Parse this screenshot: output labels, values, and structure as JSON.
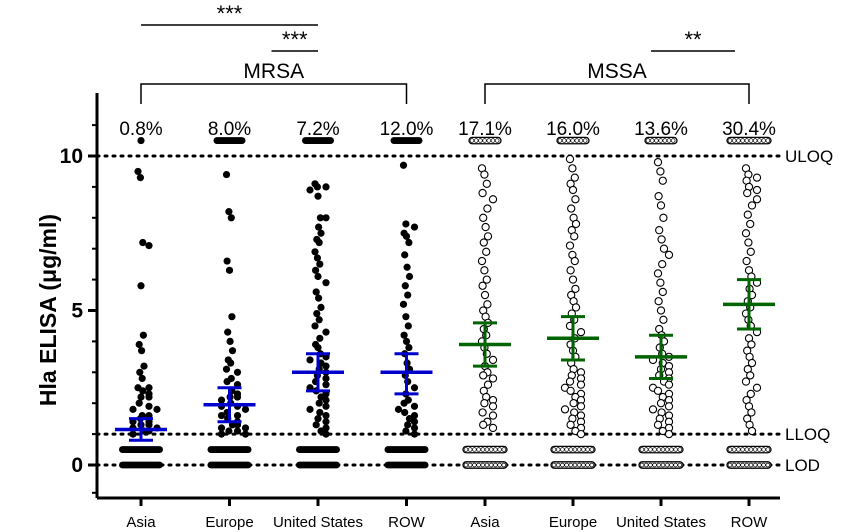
{
  "chart_data": {
    "type": "scatter",
    "title": "",
    "ylabel": "Hla ELISA (μg/ml)",
    "ylim": [
      -0.9,
      12.2
    ],
    "yticks": [
      0,
      5,
      10
    ],
    "categories": [
      "Asia",
      "Europe",
      "United States",
      "ROW",
      "Asia",
      "Europe",
      "United States",
      "ROW"
    ],
    "groups": [
      {
        "label": "MRSA",
        "from": 0,
        "to": 3,
        "marker": "filled",
        "color": "#0000cc"
      },
      {
        "label": "MSSA",
        "from": 4,
        "to": 7,
        "marker": "open",
        "color": "#006400"
      }
    ],
    "percent_above_uloq": [
      "0.8%",
      "8.0%",
      "7.2%",
      "12.0%",
      "17.1%",
      "16.0%",
      "13.6%",
      "30.4%"
    ],
    "reference_lines": [
      {
        "label": "ULOQ",
        "y": 10.0
      },
      {
        "label": "LLOQ",
        "y": 1.0
      },
      {
        "label": "LOD",
        "y": 0.0
      }
    ],
    "censored_y": {
      "above_uloq": 10.5,
      "below_lod": 0.0,
      "below_lloq": 0.5
    },
    "summary": [
      {
        "mean": 1.15,
        "lower": 0.8,
        "upper": 1.5
      },
      {
        "mean": 1.95,
        "lower": 1.4,
        "upper": 2.5
      },
      {
        "mean": 3.0,
        "lower": 2.4,
        "upper": 3.6
      },
      {
        "mean": 3.0,
        "lower": 2.3,
        "upper": 3.6
      },
      {
        "mean": 3.9,
        "lower": 3.2,
        "upper": 4.6
      },
      {
        "mean": 4.1,
        "lower": 3.4,
        "upper": 4.8
      },
      {
        "mean": 3.5,
        "lower": 2.8,
        "upper": 4.2
      },
      {
        "mean": 5.2,
        "lower": 4.4,
        "upper": 6.0
      }
    ],
    "points": [
      [
        9.5,
        9.3,
        7.2,
        7.1,
        5.8,
        4.2,
        3.9,
        3.7,
        3.2,
        3.0,
        2.8,
        2.5,
        2.5,
        2.4,
        2.3,
        2.2,
        2.2,
        2.0,
        1.9,
        1.8,
        1.8,
        1.6,
        1.6,
        1.5,
        1.4,
        1.4,
        1.3,
        1.3,
        1.2,
        1.2,
        1.1,
        1.1,
        1.0
      ],
      [
        9.4,
        8.2,
        8.0,
        6.6,
        6.3,
        4.8,
        4.3,
        4.0,
        3.7,
        3.4,
        3.3,
        3.1,
        3.0,
        2.8,
        2.7,
        2.6,
        2.4,
        2.3,
        2.2,
        2.2,
        2.1,
        2.0,
        1.9,
        1.9,
        1.8,
        1.7,
        1.6,
        1.6,
        1.5,
        1.4,
        1.3,
        1.3,
        1.2,
        1.2,
        1.1,
        1.1,
        1.0,
        1.0
      ],
      [
        9.1,
        9.0,
        9.0,
        8.9,
        8.7,
        8.0,
        8.0,
        7.7,
        7.5,
        7.3,
        7.2,
        6.9,
        6.7,
        6.5,
        6.3,
        6.1,
        5.9,
        5.6,
        5.4,
        5.1,
        4.9,
        4.7,
        4.5,
        4.3,
        4.1,
        3.9,
        3.8,
        3.6,
        3.5,
        3.4,
        3.3,
        3.2,
        3.1,
        3.0,
        2.9,
        2.8,
        2.7,
        2.6,
        2.5,
        2.4,
        2.3,
        2.2,
        2.1,
        2.0,
        1.9,
        1.8,
        1.7,
        1.6,
        1.5,
        1.4,
        1.3,
        1.2,
        1.1,
        1.0
      ],
      [
        9.7,
        7.8,
        7.7,
        7.5,
        7.4,
        7.2,
        6.8,
        6.4,
        6.1,
        5.8,
        5.5,
        5.2,
        4.8,
        4.5,
        4.2,
        4.0,
        3.8,
        3.6,
        3.3,
        3.1,
        2.9,
        2.7,
        2.5,
        2.3,
        2.1,
        2.0,
        1.9,
        1.8,
        1.7,
        1.6,
        1.5,
        1.4,
        1.3,
        1.2,
        1.1,
        1.0
      ],
      [
        9.6,
        9.4,
        9.1,
        8.8,
        8.6,
        8.3,
        8.0,
        7.7,
        7.4,
        7.2,
        6.9,
        6.6,
        6.3,
        6.0,
        5.8,
        5.5,
        5.2,
        5.0,
        4.8,
        4.6,
        4.4,
        4.2,
        4.0,
        3.8,
        3.6,
        3.4,
        3.2,
        3.0,
        2.9,
        2.8,
        2.6,
        2.4,
        2.2,
        2.1,
        2.0,
        1.9,
        1.7,
        1.6,
        1.4,
        1.3,
        1.2
      ],
      [
        9.9,
        9.6,
        9.3,
        9.1,
        8.9,
        8.6,
        8.3,
        8.0,
        7.8,
        7.6,
        7.4,
        7.1,
        6.8,
        6.6,
        6.3,
        6.0,
        5.7,
        5.5,
        5.3,
        5.1,
        4.9,
        4.7,
        4.5,
        4.3,
        4.1,
        3.9,
        3.7,
        3.5,
        3.3,
        3.1,
        3.0,
        2.9,
        2.8,
        2.7,
        2.6,
        2.5,
        2.4,
        2.3,
        2.2,
        2.1,
        2.0,
        1.9,
        1.8,
        1.7,
        1.6,
        1.5,
        1.4,
        1.3,
        1.2,
        1.1,
        1.0
      ],
      [
        9.8,
        9.5,
        9.2,
        8.7,
        8.4,
        8.0,
        7.6,
        7.3,
        7.0,
        6.8,
        6.5,
        6.2,
        5.9,
        5.6,
        5.3,
        5.0,
        4.7,
        4.4,
        4.2,
        4.0,
        3.8,
        3.6,
        3.5,
        3.4,
        3.3,
        3.2,
        3.1,
        3.0,
        2.9,
        2.8,
        2.7,
        2.6,
        2.5,
        2.4,
        2.3,
        2.2,
        2.1,
        2.0,
        1.9,
        1.8,
        1.7,
        1.6,
        1.5,
        1.4,
        1.3,
        1.2,
        1.1,
        1.0
      ],
      [
        9.6,
        9.4,
        9.3,
        9.2,
        9.0,
        8.9,
        8.8,
        8.6,
        8.4,
        8.1,
        7.8,
        7.5,
        7.2,
        6.9,
        6.6,
        6.3,
        6.1,
        5.9,
        5.7,
        5.5,
        5.3,
        5.1,
        4.9,
        4.7,
        4.5,
        4.3,
        4.1,
        3.9,
        3.7,
        3.5,
        3.3,
        3.1,
        2.9,
        2.7,
        2.5,
        2.3,
        2.1,
        1.9,
        1.7,
        1.5,
        1.3,
        1.1
      ]
    ],
    "comparisons": [
      {
        "from": 0,
        "to": 2,
        "label": "***",
        "level": 0
      },
      {
        "from": 1,
        "to": 2,
        "label": "***",
        "level": 1
      },
      {
        "from": 6,
        "to": 7,
        "label": "**",
        "level": 1
      }
    ]
  }
}
